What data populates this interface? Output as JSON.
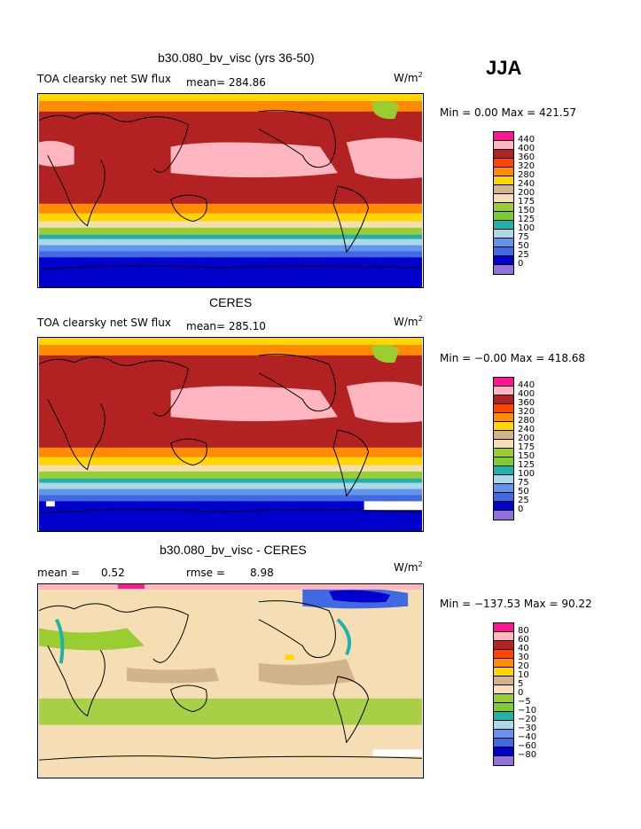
{
  "season": "JJA",
  "panels": [
    {
      "title": "b30.080_bv_visc (yrs 36-50)",
      "left_label": "TOA clearsky net SW flux",
      "mean_text": "mean= 284.86",
      "units": "W/m",
      "units_sup": "2",
      "minmax": "Min =   0.00 Max = 421.57",
      "levels": [
        "440",
        "400",
        "360",
        "320",
        "280",
        "240",
        "200",
        "175",
        "150",
        "125",
        "100",
        "75",
        "50",
        "25",
        "0"
      ]
    },
    {
      "title": "CERES",
      "left_label": "TOA clearsky net SW flux",
      "mean_text": "mean= 285.10",
      "units": "W/m",
      "units_sup": "2",
      "minmax": "Min =  −0.00 Max = 418.68",
      "levels": [
        "440",
        "400",
        "360",
        "320",
        "280",
        "240",
        "200",
        "175",
        "150",
        "125",
        "100",
        "75",
        "50",
        "25",
        "0"
      ]
    },
    {
      "title": "b30.080_bv_visc - CERES",
      "mean_label": "mean =",
      "mean_value": "0.52",
      "rmse_label": "rmse =",
      "rmse_value": "8.98",
      "units": "W/m",
      "units_sup": "2",
      "minmax": "Min = −137.53 Max =  90.22",
      "levels": [
        "80",
        "60",
        "40",
        "30",
        "20",
        "10",
        "5",
        "0",
        "−5",
        "−10",
        "−20",
        "−30",
        "−40",
        "−60",
        "−80"
      ]
    }
  ],
  "abs_colors": [
    "#ff1493",
    "#ffb6c1",
    "#b22222",
    "#ff4500",
    "#ff8c00",
    "#ffd700",
    "#d2b48c",
    "#f5deb3",
    "#9acd32",
    "#7ccd32",
    "#20b2aa",
    "#add8e6",
    "#6495ed",
    "#4169e1",
    "#0000cd",
    "#9370db"
  ],
  "diff_colors": [
    "#ff1493",
    "#ffb6c1",
    "#b22222",
    "#ff4500",
    "#ff8c00",
    "#ffd700",
    "#d2b48c",
    "#f5deb3",
    "#9acd32",
    "#7ccd32",
    "#20b2aa",
    "#add8e6",
    "#6495ed",
    "#4169e1",
    "#0000cd",
    "#9370db"
  ],
  "chart_data": [
    {
      "type": "heatmap",
      "title": "b30.080_bv_visc (yrs 36-50)",
      "variable": "TOA clearsky net SW flux",
      "units": "W/m2",
      "mean": 284.86,
      "min": 0.0,
      "max": 421.57,
      "levels": [
        0,
        25,
        50,
        75,
        100,
        125,
        150,
        175,
        200,
        240,
        280,
        320,
        360,
        400,
        440
      ]
    },
    {
      "type": "heatmap",
      "title": "CERES",
      "variable": "TOA clearsky net SW flux",
      "units": "W/m2",
      "mean": 285.1,
      "min": -0.0,
      "max": 418.68,
      "levels": [
        0,
        25,
        50,
        75,
        100,
        125,
        150,
        175,
        200,
        240,
        280,
        320,
        360,
        400,
        440
      ]
    },
    {
      "type": "heatmap",
      "title": "b30.080_bv_visc - CERES",
      "units": "W/m2",
      "mean": 0.52,
      "rmse": 8.98,
      "min": -137.53,
      "max": 90.22,
      "levels": [
        -80,
        -60,
        -40,
        -30,
        -20,
        -10,
        -5,
        0,
        5,
        10,
        20,
        30,
        40,
        60,
        80
      ]
    }
  ]
}
